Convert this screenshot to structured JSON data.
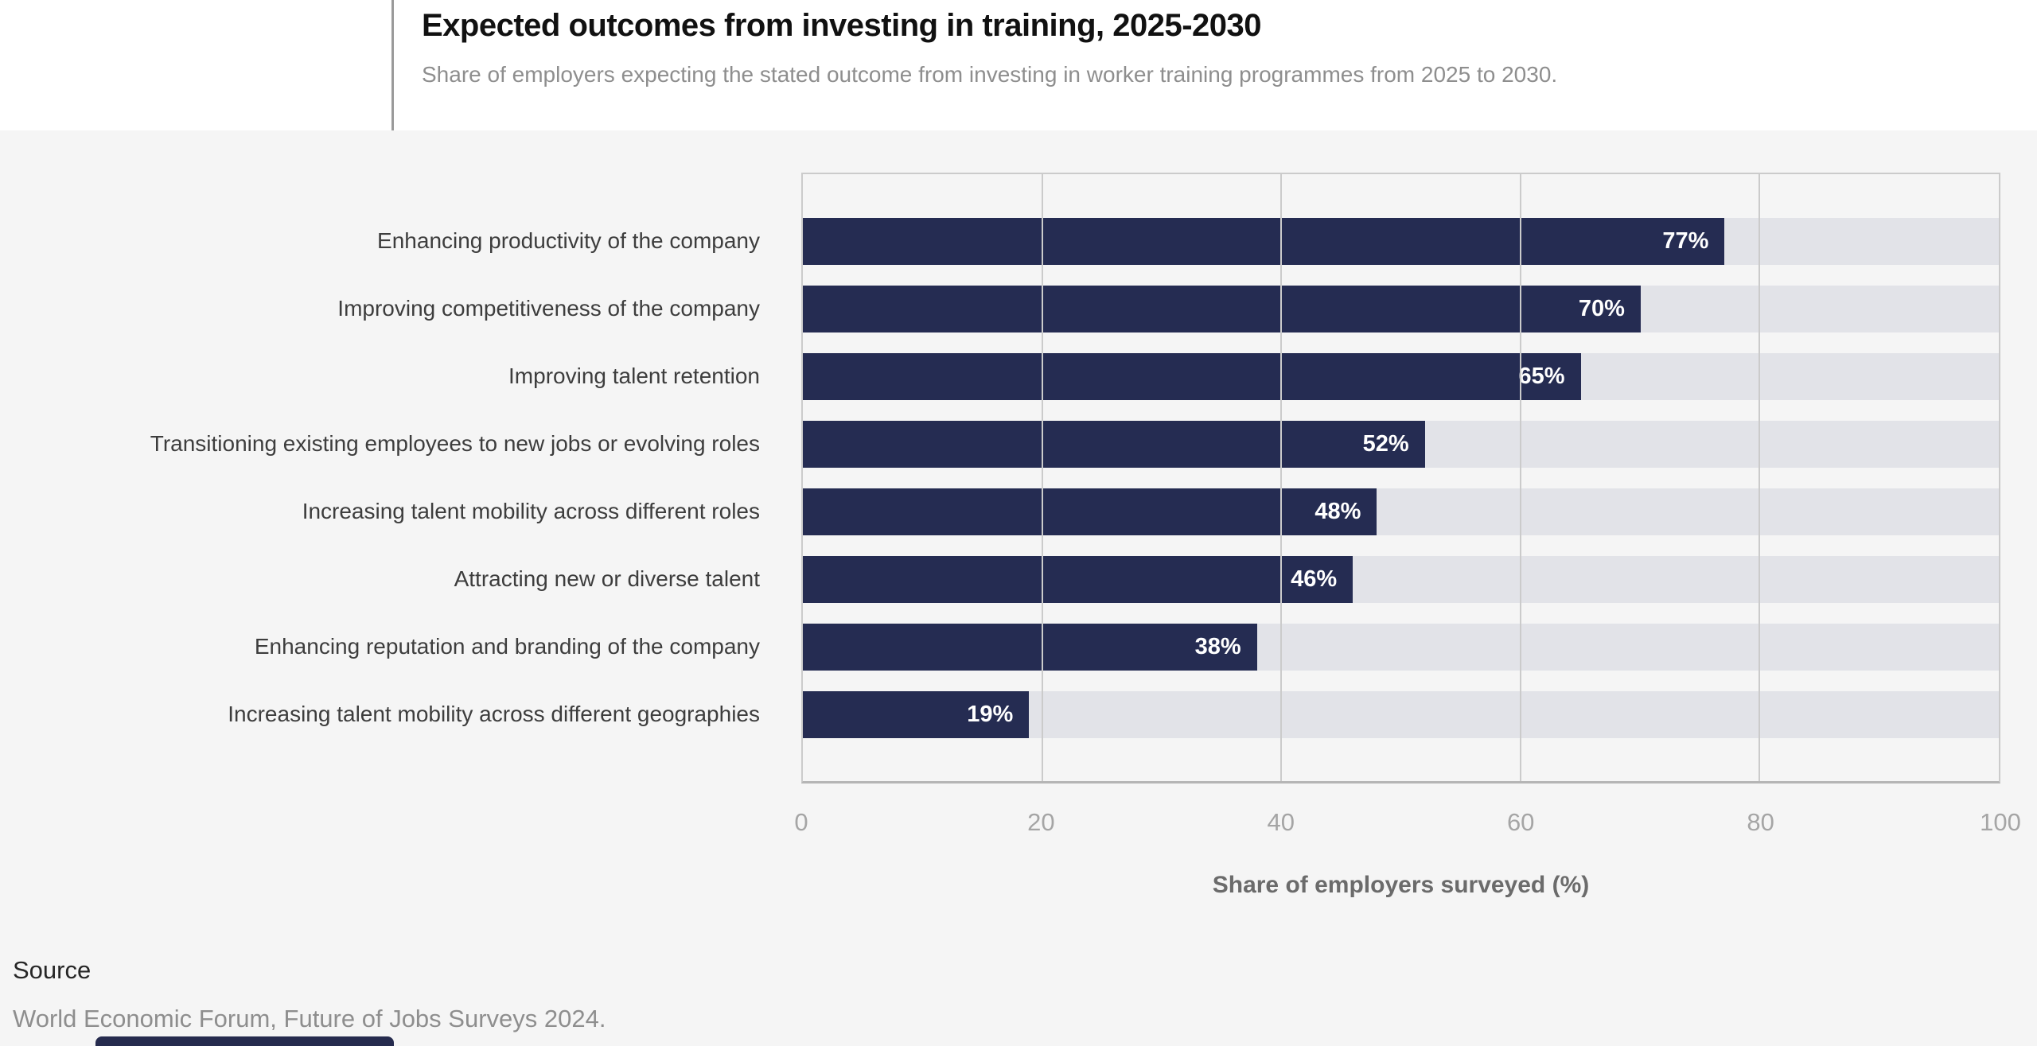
{
  "header": {
    "title": "Expected outcomes from investing in training, 2025-2030",
    "subtitle": "Share of employers expecting the stated outcome from investing in worker training programmes from 2025 to 2030."
  },
  "chart_data": {
    "type": "bar",
    "orientation": "horizontal",
    "title": "Expected outcomes from investing in training, 2025-2030",
    "categories": [
      "Enhancing productivity of the company",
      "Improving competitiveness of the company",
      "Improving talent retention",
      "Transitioning existing employees to new jobs or evolving roles",
      "Increasing talent mobility across different roles",
      "Attracting new or diverse talent",
      "Enhancing reputation and branding of the company",
      "Increasing talent mobility across different geographies"
    ],
    "values": [
      77,
      70,
      65,
      52,
      48,
      46,
      38,
      19
    ],
    "value_labels": [
      "77%",
      "70%",
      "65%",
      "52%",
      "48%",
      "46%",
      "38%",
      "19%"
    ],
    "xlabel": "Share of employers surveyed (%)",
    "xticks": [
      "0",
      "20",
      "40",
      "60",
      "80",
      "100"
    ],
    "xlim": [
      0,
      100
    ],
    "grid": true,
    "legend": false,
    "bar_color": "#252c52",
    "track_color": "#e2e3e8",
    "value_label_color": "#ffffff"
  },
  "source": {
    "label": "Source",
    "text": "World Economic Forum, Future of Jobs Surveys 2024."
  }
}
